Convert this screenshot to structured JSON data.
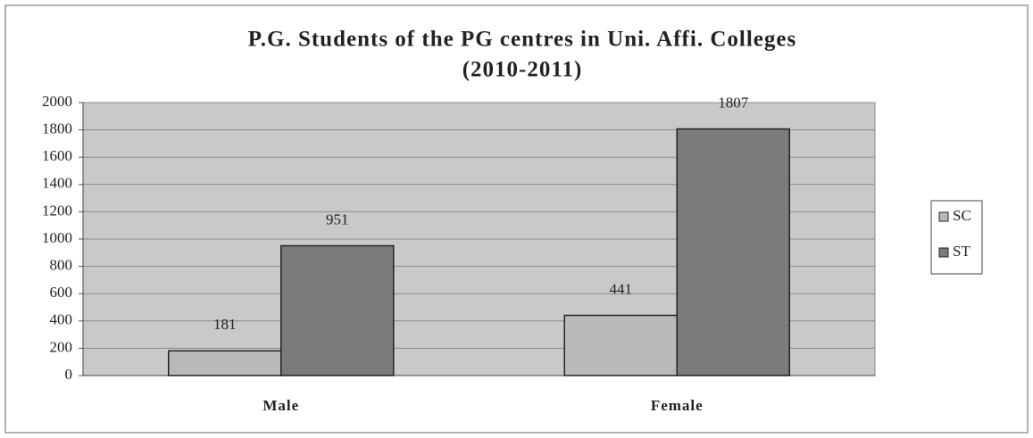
{
  "chart_data": {
    "type": "bar",
    "title": "P.G. Students of the PG centres in Uni. Affi. Colleges",
    "subtitle": "(2010-2011)",
    "categories": [
      "Male",
      "Female"
    ],
    "series": [
      {
        "name": "SC",
        "color": "#b9b9b9",
        "values": [
          181,
          441
        ]
      },
      {
        "name": "ST",
        "color": "#7b7b7b",
        "values": [
          951,
          1807
        ]
      }
    ],
    "ylim": [
      0,
      2000
    ],
    "yticks": [
      0,
      200,
      400,
      600,
      800,
      1000,
      1200,
      1400,
      1600,
      1800,
      2000
    ],
    "grid": true,
    "legend": "right"
  }
}
